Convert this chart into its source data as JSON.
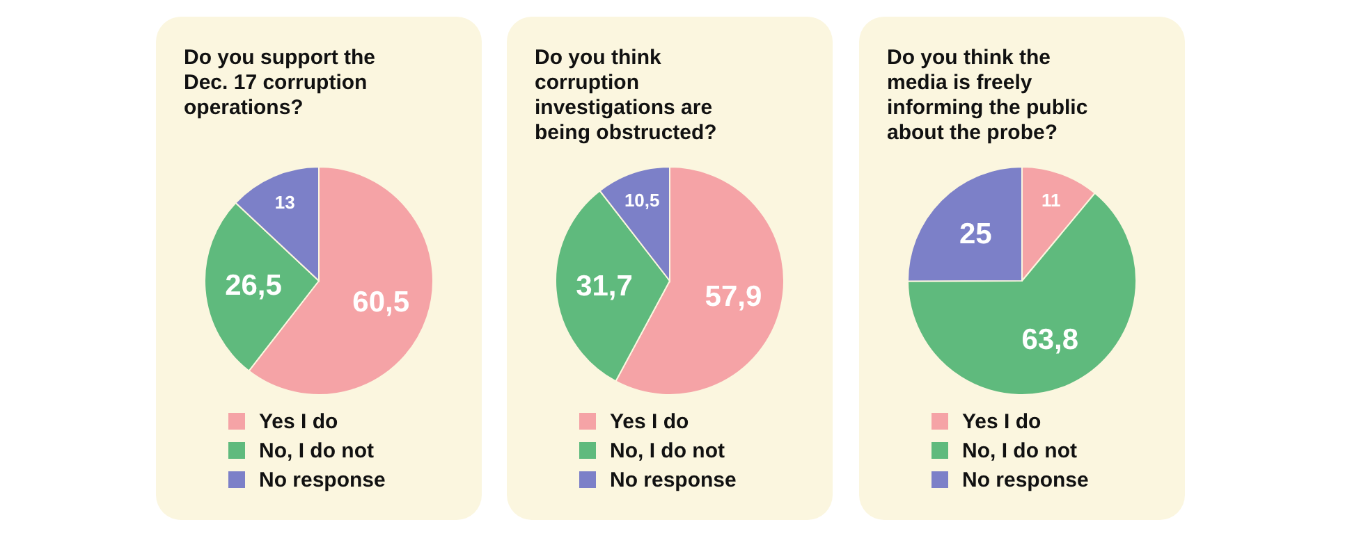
{
  "chart_data": [
    {
      "type": "pie",
      "title": "Do you support the Dec. 17 corruption operations?",
      "categories": [
        "Yes I do",
        "No, I do not",
        "No response"
      ],
      "values": [
        60.5,
        26.5,
        13
      ],
      "value_labels": [
        "60,5",
        "26,5",
        "13"
      ],
      "colors": [
        "#f5a3a6",
        "#5fba7d",
        "#7c80c8"
      ],
      "legend": "bottom"
    },
    {
      "type": "pie",
      "title": "Do you think corruption investigations are being obstructed?",
      "categories": [
        "Yes I do",
        "No, I do not",
        "No response"
      ],
      "values": [
        57.9,
        31.7,
        10.5
      ],
      "value_labels": [
        "57,9",
        "31,7",
        "10,5"
      ],
      "colors": [
        "#f5a3a6",
        "#5fba7d",
        "#7c80c8"
      ],
      "legend": "bottom"
    },
    {
      "type": "pie",
      "title": "Do you think the media is freely informing the public about the probe?",
      "categories": [
        "Yes I do",
        "No, I do not",
        "No response"
      ],
      "values": [
        11,
        63.8,
        25
      ],
      "value_labels": [
        "11",
        "63,8",
        "25"
      ],
      "colors": [
        "#f5a3a6",
        "#5fba7d",
        "#7c80c8"
      ],
      "legend": "bottom"
    }
  ]
}
